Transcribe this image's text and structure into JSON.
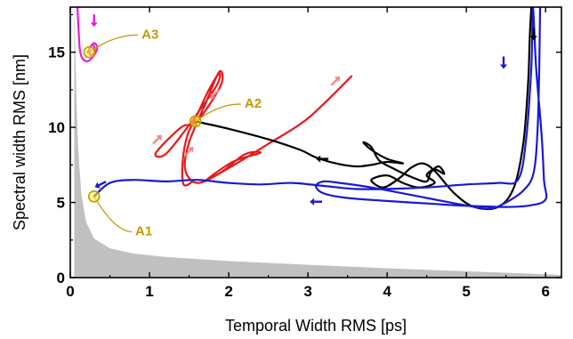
{
  "chart_data": {
    "type": "line",
    "title": "",
    "xlabel": "Temporal Width RMS [ps]",
    "ylabel": "Spectral width RMS [nm]",
    "xlim": [
      0,
      6.2
    ],
    "ylim": [
      0,
      18
    ],
    "x_ticks": [
      "0",
      "1",
      "2",
      "3",
      "4",
      "5",
      "6"
    ],
    "y_ticks": [
      "0",
      "5",
      "10",
      "15"
    ],
    "grid": false,
    "legend": "none",
    "bound_region": {
      "color": "#c0c0c0",
      "points": [
        [
          0.05,
          18
        ],
        [
          0.08,
          11.5
        ],
        [
          0.1,
          8.5
        ],
        [
          0.14,
          5.5
        ],
        [
          0.2,
          3.7
        ],
        [
          0.3,
          2.6
        ],
        [
          0.5,
          1.95
        ],
        [
          0.8,
          1.6
        ],
        [
          1.2,
          1.38
        ],
        [
          2.0,
          1.1
        ],
        [
          3.0,
          0.85
        ],
        [
          4.0,
          0.62
        ],
        [
          5.0,
          0.42
        ],
        [
          6.0,
          0.22
        ],
        [
          6.2,
          0.18
        ]
      ]
    },
    "series": [
      {
        "color": "#e81dd8",
        "points": [
          [
            0.09,
            18
          ],
          [
            0.1,
            17.0
          ],
          [
            0.11,
            16.0
          ],
          [
            0.12,
            15.2
          ],
          [
            0.15,
            14.6
          ],
          [
            0.22,
            14.4
          ],
          [
            0.3,
            14.8
          ],
          [
            0.34,
            15.3
          ],
          [
            0.3,
            15.6
          ],
          [
            0.24,
            15.2
          ],
          [
            0.26,
            14.8
          ],
          [
            0.31,
            15.1
          ],
          [
            0.28,
            15.5
          ],
          [
            0.22,
            15.0
          ]
        ]
      },
      {
        "color": "#e8191a",
        "points": [
          [
            1.55,
            6.4
          ],
          [
            1.43,
            6.2
          ],
          [
            1.42,
            7.8
          ],
          [
            1.48,
            9.5
          ],
          [
            1.58,
            10.6
          ],
          [
            1.75,
            12.5
          ],
          [
            1.88,
            13.6
          ],
          [
            1.85,
            12.8
          ],
          [
            1.6,
            10.9
          ],
          [
            1.45,
            9.8
          ],
          [
            1.2,
            8.2
          ],
          [
            1.08,
            8.3
          ],
          [
            1.4,
            10.0
          ],
          [
            1.6,
            10.4
          ],
          [
            1.9,
            12.8
          ],
          [
            1.88,
            13.7
          ],
          [
            1.7,
            11.5
          ],
          [
            1.5,
            9.0
          ],
          [
            1.45,
            7.2
          ],
          [
            1.6,
            6.3
          ],
          [
            1.9,
            7.0
          ],
          [
            2.2,
            8.2
          ],
          [
            2.4,
            8.3
          ],
          [
            2.05,
            7.7
          ],
          [
            1.7,
            6.4
          ],
          [
            2.1,
            7.6
          ],
          [
            2.5,
            8.9
          ],
          [
            3.0,
            10.6
          ],
          [
            3.55,
            13.4
          ]
        ]
      },
      {
        "color": "#000000",
        "points": [
          [
            1.58,
            10.4
          ],
          [
            2.0,
            9.9
          ],
          [
            2.5,
            9.2
          ],
          [
            2.9,
            8.5
          ],
          [
            3.1,
            8.0
          ],
          [
            3.35,
            7.6
          ],
          [
            3.6,
            7.4
          ],
          [
            3.8,
            7.5
          ],
          [
            4.0,
            7.7
          ],
          [
            4.2,
            7.6
          ],
          [
            4.0,
            7.9
          ],
          [
            3.8,
            8.5
          ],
          [
            3.7,
            9.0
          ],
          [
            3.8,
            8.7
          ],
          [
            3.9,
            7.8
          ],
          [
            4.1,
            7.2
          ],
          [
            4.35,
            6.6
          ],
          [
            4.5,
            6.4
          ],
          [
            4.55,
            7.0
          ],
          [
            4.65,
            7.4
          ],
          [
            4.72,
            6.9
          ],
          [
            4.6,
            7.2
          ],
          [
            4.5,
            6.8
          ],
          [
            4.6,
            6.3
          ],
          [
            4.4,
            6.0
          ],
          [
            4.2,
            6.3
          ],
          [
            4.0,
            6.8
          ],
          [
            3.8,
            6.5
          ],
          [
            3.95,
            6.0
          ],
          [
            4.15,
            6.6
          ],
          [
            4.3,
            7.3
          ],
          [
            4.45,
            7.6
          ],
          [
            4.6,
            7.1
          ],
          [
            4.85,
            5.6
          ],
          [
            5.1,
            4.7
          ],
          [
            5.4,
            4.7
          ],
          [
            5.6,
            6.0
          ],
          [
            5.72,
            9.0
          ],
          [
            5.78,
            13.0
          ],
          [
            5.8,
            16.0
          ],
          [
            5.82,
            18.0
          ]
        ]
      },
      {
        "color": "#1a1ad2",
        "points": [
          [
            0.3,
            5.4
          ],
          [
            0.5,
            6.3
          ],
          [
            0.8,
            6.5
          ],
          [
            1.2,
            6.4
          ],
          [
            1.6,
            6.5
          ],
          [
            2.0,
            6.3
          ],
          [
            2.4,
            6.2
          ],
          [
            2.8,
            6.3
          ],
          [
            3.2,
            6.1
          ],
          [
            3.6,
            5.9
          ],
          [
            4.0,
            5.9
          ],
          [
            4.5,
            6.0
          ],
          [
            5.0,
            6.2
          ],
          [
            5.4,
            6.3
          ],
          [
            5.65,
            6.5
          ],
          [
            5.75,
            9.0
          ],
          [
            5.82,
            14.0
          ],
          [
            5.84,
            18.0
          ],
          [
            5.88,
            14.0
          ],
          [
            5.95,
            9.5
          ],
          [
            5.98,
            6.5
          ],
          [
            6.0,
            5.2
          ],
          [
            5.8,
            4.8
          ],
          [
            5.5,
            4.7
          ],
          [
            5.2,
            4.75
          ],
          [
            4.9,
            4.8
          ],
          [
            4.6,
            4.9
          ],
          [
            4.0,
            5.1
          ],
          [
            3.5,
            5.3
          ],
          [
            3.2,
            5.6
          ],
          [
            3.1,
            6.1
          ],
          [
            3.2,
            6.4
          ],
          [
            3.4,
            6.3
          ],
          [
            3.8,
            6.0
          ],
          [
            4.5,
            5.3
          ],
          [
            5.0,
            4.8
          ],
          [
            5.3,
            4.6
          ],
          [
            5.5,
            5.0
          ],
          [
            5.72,
            5.8
          ],
          [
            5.85,
            7.0
          ],
          [
            5.9,
            10.0
          ],
          [
            5.92,
            14.0
          ],
          [
            5.93,
            18.0
          ]
        ]
      }
    ],
    "annotations": [
      {
        "text": "A1",
        "color": "#c59a06",
        "x": 0.3,
        "y": 5.4,
        "tx": 0.82,
        "ty": 3.1
      },
      {
        "text": "A2",
        "color": "#c59a06",
        "x": 1.58,
        "y": 10.4,
        "tx": 2.2,
        "ty": 11.6
      },
      {
        "text": "A3",
        "color": "#c59a06",
        "x": 0.24,
        "y": 15.0,
        "tx": 0.9,
        "ty": 16.2
      }
    ],
    "direction_arrows": [
      {
        "color": "#e81dd8",
        "x": 0.3,
        "y": 17.1,
        "dx": 0,
        "dy": -1
      },
      {
        "color": "#1a1ad2",
        "x": 0.38,
        "y": 6.2,
        "dx": -1,
        "dy": -0.5
      },
      {
        "color": "#1a1ad2",
        "x": 3.1,
        "y": 5.05,
        "dx": -1,
        "dy": 0
      },
      {
        "color": "#1a1ad2",
        "x": 5.47,
        "y": 14.3,
        "dx": 0,
        "dy": -1
      },
      {
        "color": "#000000",
        "x": 5.85,
        "y": 16.2,
        "dx": 0,
        "dy": -1
      },
      {
        "color": "#000000",
        "x": 3.18,
        "y": 7.9,
        "dx": -1,
        "dy": 0
      },
      {
        "color": "#f08a8a",
        "x": 1.1,
        "y": 9.2,
        "dx": 1,
        "dy": 1
      },
      {
        "color": "#f08a8a",
        "x": 1.5,
        "y": 8.4,
        "dx": 1,
        "dy": 1
      },
      {
        "color": "#f08a8a",
        "x": 1.82,
        "y": 12.2,
        "dx": -1,
        "dy": -1
      },
      {
        "color": "#f08a8a",
        "x": 3.35,
        "y": 13.1,
        "dx": 1,
        "dy": 1
      }
    ]
  }
}
